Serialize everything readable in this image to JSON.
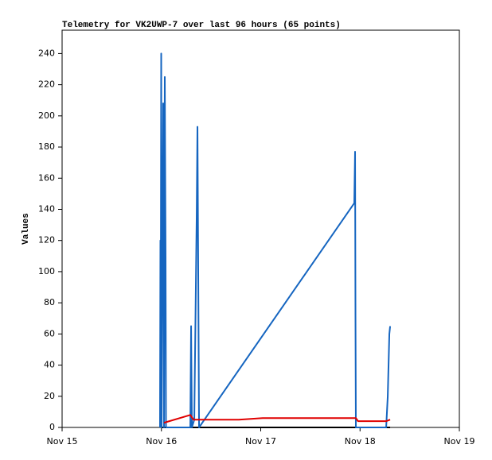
{
  "chart_data": {
    "type": "line",
    "title": "Telemetry for VK2UWP-7 over last 96 hours (65 points)",
    "y_label": "Values",
    "xlim": [
      15,
      19
    ],
    "xticks": [
      {
        "value": 15,
        "label": "Nov 15"
      },
      {
        "value": 16,
        "label": "Nov 16"
      },
      {
        "value": 17,
        "label": "Nov 17"
      },
      {
        "value": 18,
        "label": "Nov 18"
      },
      {
        "value": 19,
        "label": "Nov 19"
      }
    ],
    "ylim": [
      0,
      255
    ],
    "yticks": [
      0,
      20,
      40,
      60,
      80,
      100,
      120,
      140,
      160,
      180,
      200,
      220,
      240
    ],
    "grid": false,
    "series": [
      {
        "color": "#000000",
        "x": [
          16.002,
          16.3,
          17.0,
          17.958,
          18.303
        ],
        "values": [
          0,
          0,
          0,
          0,
          0
        ]
      },
      {
        "color": "#1565c0",
        "x": [
          15.986,
          15.99,
          15.994,
          15.998,
          16.002,
          16.01,
          16.018,
          16.026,
          16.034,
          16.042,
          16.046,
          16.291,
          16.299,
          16.307,
          16.331,
          16.355,
          16.363,
          16.379,
          17.942,
          17.95,
          17.954,
          17.958,
          18.263,
          18.279,
          18.295,
          18.303
        ],
        "values": [
          0,
          120,
          80,
          240,
          0,
          112,
          208,
          0,
          225,
          110,
          0,
          0,
          65,
          0,
          5,
          135,
          193,
          0,
          144,
          177,
          72,
          0,
          0,
          20,
          60,
          65
        ]
      },
      {
        "color": "#e00000",
        "x": [
          16.026,
          16.291,
          16.323,
          16.78,
          17.02,
          17.58,
          17.958,
          17.98,
          18.263,
          18.303
        ],
        "values": [
          3,
          8,
          5,
          5,
          6,
          6,
          6,
          4,
          4,
          5
        ]
      }
    ]
  }
}
